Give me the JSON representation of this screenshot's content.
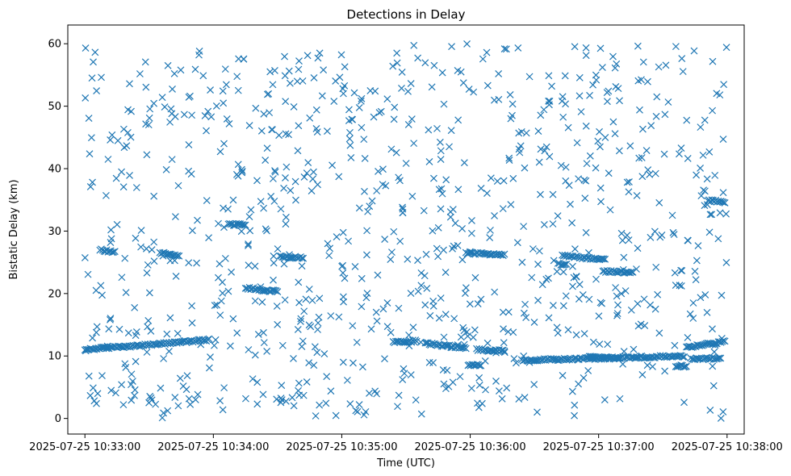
{
  "chart_data": {
    "type": "scatter",
    "title": "Detections in Delay",
    "xlabel": "Time (UTC)",
    "ylabel": "Bistatic Delay (km)",
    "marker": "x",
    "color": "#1f77b4",
    "grid": false,
    "xlim": [
      "2025-07-25 10:32:52",
      "2025-07-25 10:38:08"
    ],
    "ylim": [
      -2.5,
      63
    ],
    "xticks": [
      {
        "label": "2025-07-25 10:33:00",
        "value": "2025-07-25 10:33:00"
      },
      {
        "label": "2025-07-25 10:34:00",
        "value": "2025-07-25 10:34:00"
      },
      {
        "label": "2025-07-25 10:35:00",
        "value": "2025-07-25 10:35:00"
      },
      {
        "label": "2025-07-25 10:36:00",
        "value": "2025-07-25 10:36:00"
      },
      {
        "label": "2025-07-25 10:37:00",
        "value": "2025-07-25 10:37:00"
      },
      {
        "label": "2025-07-25 10:38:00",
        "value": "2025-07-25 10:38:00"
      }
    ],
    "yticks": [
      0,
      10,
      20,
      30,
      40,
      50,
      60
    ],
    "tracks": [
      {
        "t0": "2025-07-25 10:33:00",
        "t1": "2025-07-25 10:33:58",
        "y0": 11.0,
        "y1": 12.6
      },
      {
        "t0": "2025-07-25 10:33:07",
        "t1": "2025-07-25 10:33:14",
        "y0": 27.0,
        "y1": 26.6
      },
      {
        "t0": "2025-07-25 10:33:35",
        "t1": "2025-07-25 10:33:44",
        "y0": 26.5,
        "y1": 26.1
      },
      {
        "t0": "2025-07-25 10:34:07",
        "t1": "2025-07-25 10:34:15",
        "y0": 31.1,
        "y1": 31.0
      },
      {
        "t0": "2025-07-25 10:34:15",
        "t1": "2025-07-25 10:34:30",
        "y0": 20.9,
        "y1": 20.3
      },
      {
        "t0": "2025-07-25 10:34:31",
        "t1": "2025-07-25 10:34:42",
        "y0": 25.9,
        "y1": 25.7
      },
      {
        "t0": "2025-07-25 10:35:24",
        "t1": "2025-07-25 10:35:35",
        "y0": 12.2,
        "y1": 12.4
      },
      {
        "t0": "2025-07-25 10:35:39",
        "t1": "2025-07-25 10:35:58",
        "y0": 12.0,
        "y1": 11.3
      },
      {
        "t0": "2025-07-25 10:35:58",
        "t1": "2025-07-25 10:36:16",
        "y0": 26.5,
        "y1": 26.2
      },
      {
        "t0": "2025-07-25 10:35:59",
        "t1": "2025-07-25 10:36:05",
        "y0": 8.4,
        "y1": 8.6
      },
      {
        "t0": "2025-07-25 10:36:03",
        "t1": "2025-07-25 10:36:16",
        "y0": 11.0,
        "y1": 10.8
      },
      {
        "t0": "2025-07-25 10:36:24",
        "t1": "2025-07-25 10:37:40",
        "y0": 9.3,
        "y1": 10.0
      },
      {
        "t0": "2025-07-25 10:36:41",
        "t1": "2025-07-25 10:36:45",
        "y0": 24.7,
        "y1": 24.6
      },
      {
        "t0": "2025-07-25 10:36:43",
        "t1": "2025-07-25 10:37:03",
        "y0": 26.0,
        "y1": 25.5
      },
      {
        "t0": "2025-07-25 10:36:55",
        "t1": "2025-07-25 10:37:10",
        "y0": 9.8,
        "y1": 9.6
      },
      {
        "t0": "2025-07-25 10:37:02",
        "t1": "2025-07-25 10:37:16",
        "y0": 23.6,
        "y1": 23.3
      },
      {
        "t0": "2025-07-25 10:37:36",
        "t1": "2025-07-25 10:37:41",
        "y0": 8.4,
        "y1": 8.4
      },
      {
        "t0": "2025-07-25 10:37:41",
        "t1": "2025-07-25 10:37:59",
        "y0": 11.4,
        "y1": 12.3
      },
      {
        "t0": "2025-07-25 10:37:43",
        "t1": "2025-07-25 10:37:57",
        "y0": 9.6,
        "y1": 9.6
      },
      {
        "t0": "2025-07-25 10:37:51",
        "t1": "2025-07-25 10:37:59",
        "y0": 34.9,
        "y1": 34.6
      }
    ],
    "noise_points": {
      "range_y": [
        0,
        60
      ],
      "range_x": [
        "2025-07-25 10:33:00",
        "2025-07-25 10:38:00"
      ],
      "approx_count": 900
    }
  }
}
